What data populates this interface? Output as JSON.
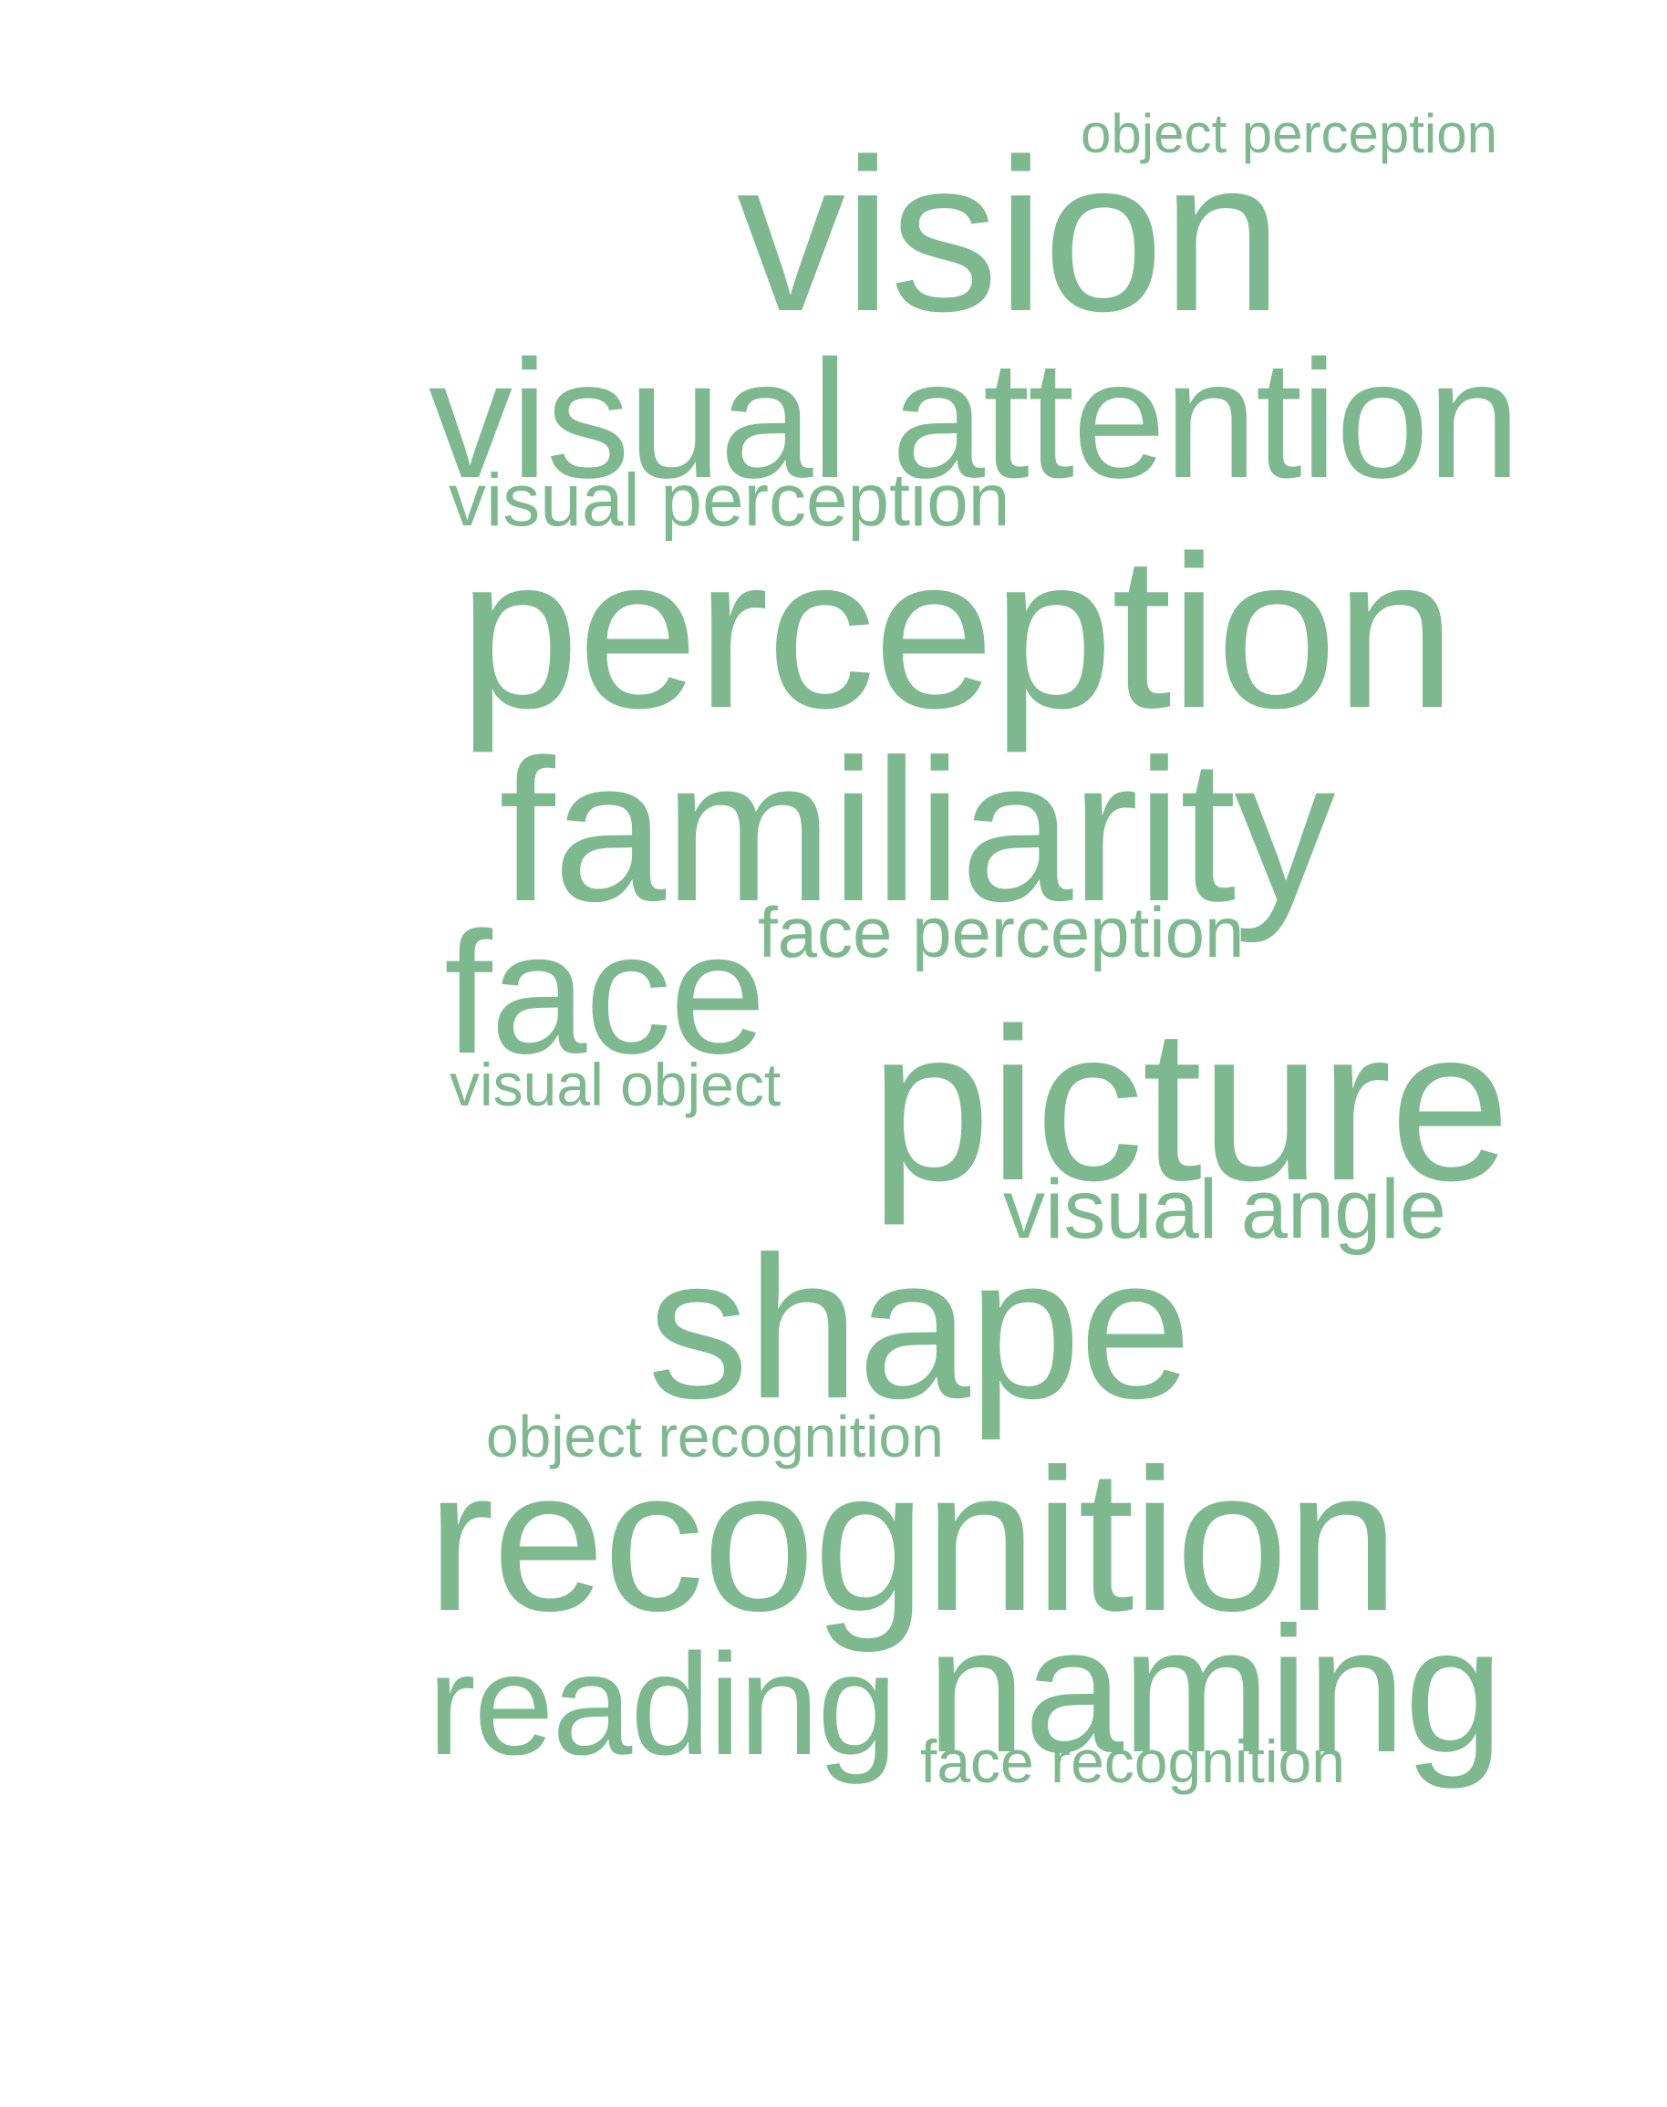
{
  "word_cloud": {
    "text_color": "#7db88f",
    "background_color": "#ffffff",
    "words": {
      "object_perception": "object perception",
      "vision": "vision",
      "visual_attention": "visual attention",
      "visual_perception": "visual perception",
      "perception": "perception",
      "familiarity": "familiarity",
      "face_perception": "face perception",
      "face": "face",
      "visual_object": "visual object",
      "picture": "picture",
      "visual_angle": "visual angle",
      "shape": "shape",
      "object_recognition": "object recognition",
      "recognition": "recognition",
      "naming": "naming",
      "reading": "reading",
      "face_recognition": "face recognition"
    }
  }
}
